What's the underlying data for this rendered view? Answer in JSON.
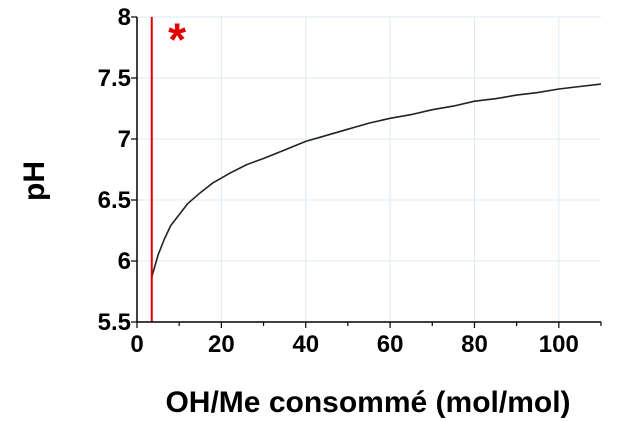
{
  "chart_data": {
    "type": "line",
    "title": "",
    "xlabel": "OH/Me consommé (mol/mol)",
    "ylabel": "pH",
    "xlim": [
      0,
      110
    ],
    "ylim": [
      5.5,
      8
    ],
    "x_ticks": [
      0,
      20,
      40,
      60,
      80,
      100
    ],
    "x_tick_labels": [
      "0",
      "20",
      "40",
      "60",
      "80",
      "100"
    ],
    "y_ticks": [
      5.5,
      6,
      6.5,
      7,
      7.5,
      8
    ],
    "y_tick_labels": [
      "5.5",
      "6",
      "6.5",
      "7",
      "7.5",
      "8"
    ],
    "grid": true,
    "legend": "none",
    "series": [
      {
        "color": "#222222",
        "points": [
          [
            3.5,
            5.87
          ],
          [
            5,
            6.05
          ],
          [
            6.5,
            6.18
          ],
          [
            8,
            6.29
          ],
          [
            10,
            6.38
          ],
          [
            12,
            6.47
          ],
          [
            15,
            6.56
          ],
          [
            18,
            6.64
          ],
          [
            22,
            6.72
          ],
          [
            26,
            6.79
          ],
          [
            30,
            6.84
          ],
          [
            35,
            6.91
          ],
          [
            40,
            6.98
          ],
          [
            45,
            7.03
          ],
          [
            50,
            7.08
          ],
          [
            55,
            7.13
          ],
          [
            60,
            7.17
          ],
          [
            65,
            7.2
          ],
          [
            70,
            7.24
          ],
          [
            75,
            7.27
          ],
          [
            80,
            7.31
          ],
          [
            85,
            7.33
          ],
          [
            90,
            7.36
          ],
          [
            95,
            7.38
          ],
          [
            100,
            7.41
          ],
          [
            105,
            7.43
          ],
          [
            110,
            7.45
          ]
        ]
      }
    ],
    "annotations": [
      {
        "type": "vline",
        "x": 3.5,
        "color": "#e00000"
      },
      {
        "type": "text",
        "text": "*",
        "x": 9.5,
        "y": 7.8,
        "color": "#e00000"
      }
    ]
  }
}
